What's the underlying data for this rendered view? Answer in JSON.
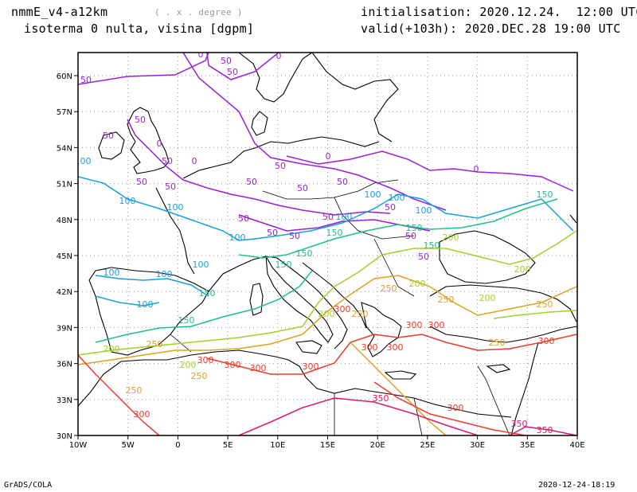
{
  "header": {
    "model": "nmmE_v4-a12km",
    "units_hint": "( . x . degree )",
    "field": "isoterma 0 nulta, visina [dgpm]",
    "init": "initialisation: 2020.12.24.  12:00 UTC",
    "valid": "valid(+103h): 2020.DEC.28 19:00 UTC"
  },
  "footer": {
    "left": "GrADS/COLA",
    "right": "2020-12-24-18:19"
  },
  "map": {
    "lat_labels": [
      "60N",
      "57N",
      "54N",
      "51N",
      "48N",
      "45N",
      "42N",
      "39N",
      "36N",
      "33N",
      "30N"
    ],
    "lon_labels": [
      "10W",
      "5W",
      "0",
      "5E",
      "10E",
      "15E",
      "20E",
      "25E",
      "30E",
      "35E",
      "40E"
    ],
    "contour_levels": [
      "0",
      "50",
      "100",
      "150",
      "200",
      "250",
      "300",
      "350"
    ],
    "contour_colors": {
      "0": "#9b1fd9",
      "50": "#9b1fd9",
      "100": "#18a0e0",
      "150": "#1fc08a",
      "200": "#9fd12b",
      "250": "#e0a020",
      "300": "#ef3b2c",
      "350": "#e0186d"
    },
    "grid": true
  }
}
